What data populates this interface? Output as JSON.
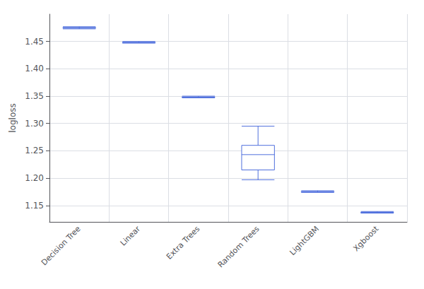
{
  "chart_data": {
    "type": "boxplot",
    "categories": [
      "Decision Tree",
      "Linear",
      "Extra Trees",
      "Random Trees",
      "LightGBM",
      "Xgboost"
    ],
    "whisker_low": [
      1.473,
      1.447,
      1.347,
      1.197,
      1.174,
      1.136
    ],
    "q1": [
      1.4745,
      1.4475,
      1.3475,
      1.215,
      1.1745,
      1.1365
    ],
    "median": [
      1.475,
      1.448,
      1.348,
      1.243,
      1.175,
      1.137
    ],
    "q3": [
      1.4755,
      1.4485,
      1.3485,
      1.26,
      1.1755,
      1.1375
    ],
    "whisker_high": [
      1.477,
      1.45,
      1.35,
      1.295,
      1.177,
      1.139
    ],
    "ylabel": "logloss",
    "ylim": [
      1.12,
      1.5
    ],
    "yticks": [
      1.15,
      {
        "value": 1.2,
        "label": "1.20"
      },
      1.25,
      {
        "value": 1.3,
        "label": "1.30"
      },
      1.35,
      {
        "value": 1.4,
        "label": "1.40"
      },
      1.45
    ],
    "grid": true
  }
}
